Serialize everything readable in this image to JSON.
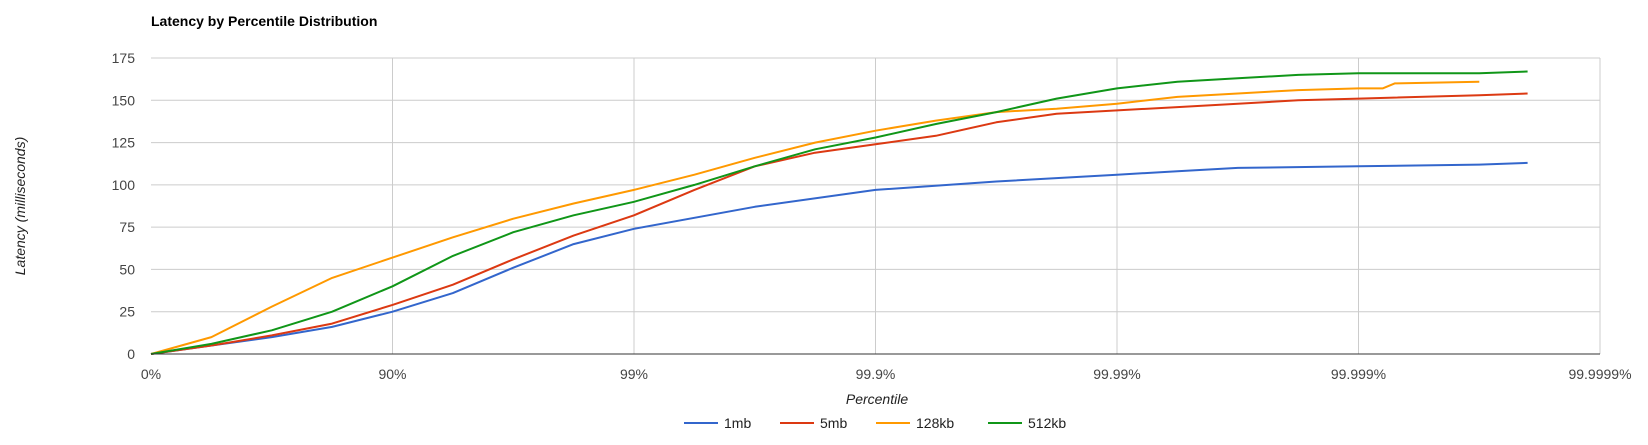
{
  "chart_data": {
    "type": "line",
    "title": "Latency by Percentile Distribution",
    "xlabel": "Percentile",
    "ylabel": "Latency (milliseconds)",
    "x_scale": "log-nines",
    "x_ticks": [
      "0%",
      "90%",
      "99%",
      "99.9%",
      "99.99%",
      "99.999%",
      "99.9999%"
    ],
    "y_ticks": [
      0,
      25,
      50,
      75,
      100,
      125,
      150,
      175
    ],
    "ylim": [
      0,
      175
    ],
    "grid": true,
    "legend_position": "bottom",
    "colors": {
      "1mb": "#3366cc",
      "5mb": "#dc3912",
      "128kb": "#ff9900",
      "512kb": "#109618"
    },
    "series": [
      {
        "name": "1mb",
        "points": [
          [
            0,
            0
          ],
          [
            0.25,
            5
          ],
          [
            0.5,
            10
          ],
          [
            0.75,
            16
          ],
          [
            1,
            25
          ],
          [
            1.25,
            36
          ],
          [
            1.5,
            51
          ],
          [
            1.75,
            65
          ],
          [
            2,
            74
          ],
          [
            2.5,
            87
          ],
          [
            3,
            97
          ],
          [
            3.5,
            102
          ],
          [
            4,
            106
          ],
          [
            4.25,
            108
          ],
          [
            4.5,
            110
          ],
          [
            5,
            111
          ],
          [
            5.5,
            112
          ],
          [
            5.7,
            113
          ]
        ]
      },
      {
        "name": "5mb",
        "points": [
          [
            0,
            0
          ],
          [
            0.25,
            5
          ],
          [
            0.5,
            11
          ],
          [
            0.75,
            18
          ],
          [
            1,
            29
          ],
          [
            1.25,
            41
          ],
          [
            1.5,
            56
          ],
          [
            1.75,
            70
          ],
          [
            2,
            82
          ],
          [
            2.25,
            97
          ],
          [
            2.5,
            111
          ],
          [
            2.75,
            119
          ],
          [
            3,
            124
          ],
          [
            3.25,
            129
          ],
          [
            3.5,
            137
          ],
          [
            3.75,
            142
          ],
          [
            4,
            144
          ],
          [
            4.25,
            146
          ],
          [
            4.5,
            148
          ],
          [
            4.75,
            150
          ],
          [
            5,
            151
          ],
          [
            5.5,
            153
          ],
          [
            5.7,
            154
          ]
        ]
      },
      {
        "name": "128kb",
        "points": [
          [
            0,
            0
          ],
          [
            0.25,
            10
          ],
          [
            0.5,
            28
          ],
          [
            0.75,
            45
          ],
          [
            1,
            57
          ],
          [
            1.25,
            69
          ],
          [
            1.5,
            80
          ],
          [
            1.75,
            89
          ],
          [
            2,
            97
          ],
          [
            2.25,
            106
          ],
          [
            2.5,
            116
          ],
          [
            2.75,
            125
          ],
          [
            3,
            132
          ],
          [
            3.25,
            138
          ],
          [
            3.5,
            143
          ],
          [
            3.75,
            145
          ],
          [
            4,
            148
          ],
          [
            4.25,
            152
          ],
          [
            4.5,
            154
          ],
          [
            4.75,
            156
          ],
          [
            5,
            157
          ],
          [
            5.1,
            157
          ],
          [
            5.15,
            160
          ],
          [
            5.5,
            161
          ]
        ]
      },
      {
        "name": "512kb",
        "points": [
          [
            0,
            0
          ],
          [
            0.25,
            6
          ],
          [
            0.5,
            14
          ],
          [
            0.75,
            25
          ],
          [
            1,
            40
          ],
          [
            1.25,
            58
          ],
          [
            1.5,
            72
          ],
          [
            1.75,
            82
          ],
          [
            2,
            90
          ],
          [
            2.25,
            100
          ],
          [
            2.5,
            111
          ],
          [
            2.75,
            121
          ],
          [
            3,
            128
          ],
          [
            3.25,
            136
          ],
          [
            3.5,
            143
          ],
          [
            3.75,
            151
          ],
          [
            4,
            157
          ],
          [
            4.25,
            161
          ],
          [
            4.5,
            163
          ],
          [
            4.75,
            165
          ],
          [
            5,
            166
          ],
          [
            5.5,
            166
          ],
          [
            5.7,
            167
          ]
        ]
      }
    ]
  }
}
